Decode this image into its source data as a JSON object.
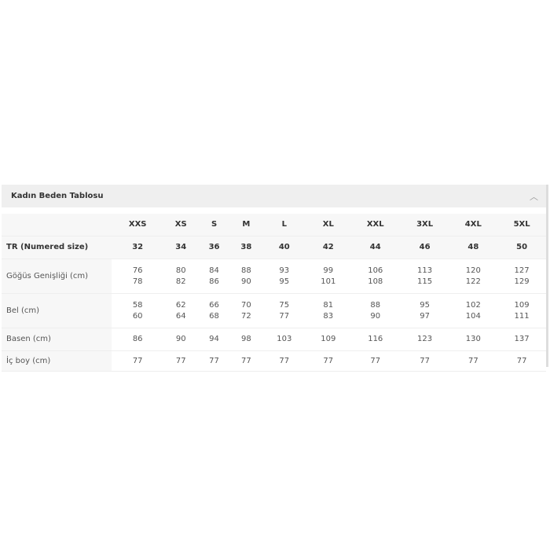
{
  "title": "Kadın Beden Tablosu",
  "collapse_icon": "chevron-up-icon",
  "sizes": [
    "XXS",
    "XS",
    "S",
    "M",
    "L",
    "XL",
    "XXL",
    "3XL",
    "4XL",
    "5XL"
  ],
  "rows": [
    {
      "label": "TR (Numered size)",
      "bold": true,
      "values": [
        "32",
        "34",
        "36",
        "38",
        "40",
        "42",
        "44",
        "46",
        "48",
        "50"
      ]
    },
    {
      "label": "Göğüs Genişliği (cm)",
      "values": [
        "76\n78",
        "80\n82",
        "84\n86",
        "88\n90",
        "93\n95",
        "99\n101",
        "106\n108",
        "113\n115",
        "120\n122",
        "127\n129"
      ]
    },
    {
      "label": "Bel (cm)",
      "values": [
        "58\n60",
        "62\n64",
        "66\n68",
        "70\n72",
        "75\n77",
        "81\n83",
        "88\n90",
        "95\n97",
        "102\n104",
        "109\n111"
      ]
    },
    {
      "label": "Basen (cm)",
      "values": [
        "86",
        "90",
        "94",
        "98",
        "103",
        "109",
        "116",
        "123",
        "130",
        "137"
      ]
    },
    {
      "label": "İç boy (cm)",
      "values": [
        "77",
        "77",
        "77",
        "77",
        "77",
        "77",
        "77",
        "77",
        "77",
        "77"
      ]
    }
  ]
}
